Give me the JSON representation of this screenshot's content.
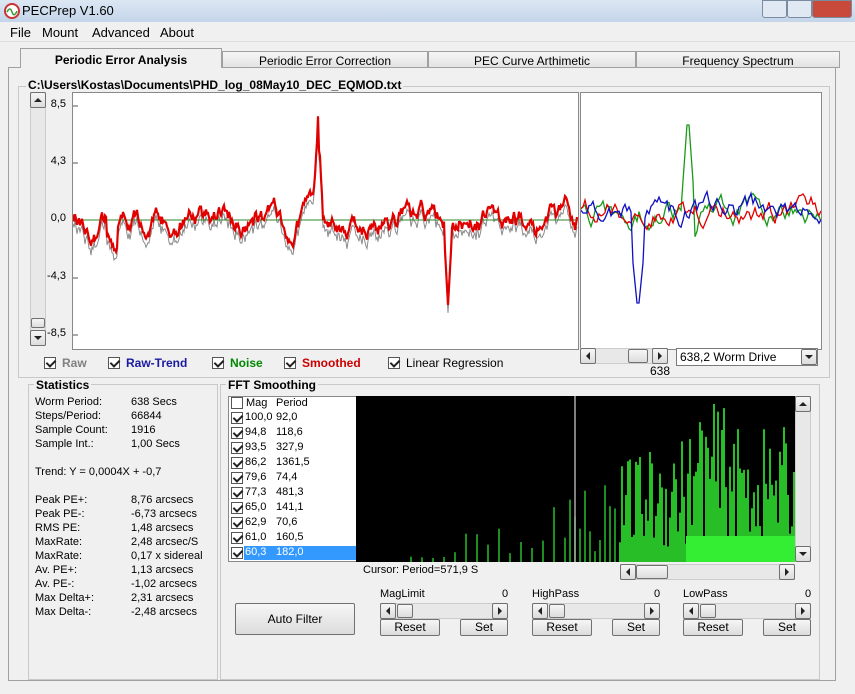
{
  "window": {
    "title": "PECPrep V1.60"
  },
  "menu": [
    "File",
    "Mount",
    "Advanced",
    "About"
  ],
  "tabs": [
    "Periodic Error Analysis",
    "Periodic Error Correction",
    "PEC Curve Arthimetic",
    "Frequency Spectrum"
  ],
  "selected_tab": 0,
  "file_path": "C:\\Users\\Kostas\\Documents\\PHD_log_08May10_DEC_EQMOD.txt",
  "plot": {
    "y_labels": [
      "8,5",
      "4,3",
      "0,0",
      "-4,3",
      "-8,5"
    ]
  },
  "checkboxes": [
    {
      "label": "Raw",
      "checked": true
    },
    {
      "label": "Raw-Trend",
      "checked": true
    },
    {
      "label": "Noise",
      "checked": true
    },
    {
      "label": "Smoothed",
      "checked": true
    },
    {
      "label": "Linear Regression",
      "checked": true
    }
  ],
  "worm_slider_value": "638",
  "drive_select": "638,2 Worm Drive",
  "statistics": {
    "title": "Statistics",
    "rows": [
      [
        "Worm Period:",
        "638 Secs"
      ],
      [
        "Steps/Period:",
        "66844"
      ],
      [
        "Sample Count:",
        "1916"
      ],
      [
        "Sample Int.:",
        "1,00 Secs"
      ],
      [
        "Peak PE+:",
        "8,76 arcsecs"
      ],
      [
        "Peak PE-:",
        "-6,73 arcsecs"
      ],
      [
        "RMS PE:",
        "1,48 arcsecs"
      ],
      [
        "MaxRate:",
        "2,48 arcsec/S"
      ],
      [
        "MaxRate:",
        "0,17 x sidereal"
      ],
      [
        "Av. PE+:",
        "1,13 arcsecs"
      ],
      [
        "Av. PE-:",
        "-1,02 arcsecs"
      ],
      [
        "Max Delta+:",
        "2,31 arcsecs"
      ],
      [
        "Max Delta-:",
        "-2,48 arcsecs"
      ]
    ],
    "trend": "Trend: Y = 0,0004X + -0,7"
  },
  "fft": {
    "title": "FFT Smoothing",
    "columns": [
      "Mag",
      "Period"
    ],
    "rows": [
      [
        "100,0",
        "92,0"
      ],
      [
        "94,8",
        "118,6"
      ],
      [
        "93,5",
        "327,9"
      ],
      [
        "86,2",
        "1361,5"
      ],
      [
        "79,6",
        "74,4"
      ],
      [
        "77,3",
        "481,3"
      ],
      [
        "65,0",
        "141,1"
      ],
      [
        "62,9",
        "70,6"
      ],
      [
        "61,0",
        "160,5"
      ],
      [
        "60,3",
        "182,0"
      ]
    ],
    "selected_row": 9,
    "cursor": "Cursor: Period=571,9 S"
  },
  "auto_filter": "Auto Filter",
  "filters": [
    {
      "label": "MagLimit",
      "value": "0",
      "reset": "Reset",
      "set": "Set"
    },
    {
      "label": "HighPass",
      "value": "0",
      "reset": "Reset",
      "set": "Set"
    },
    {
      "label": "LowPass",
      "value": "0",
      "reset": "Reset",
      "set": "Set"
    }
  ]
}
